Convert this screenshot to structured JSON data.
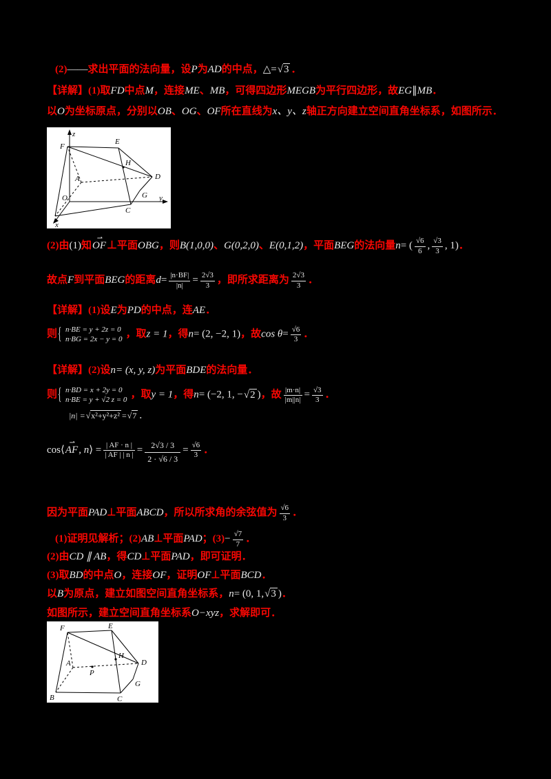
{
  "colors": {
    "background": "#000000",
    "red_text": "#f80703",
    "white_text": "#e9e9e9",
    "diagram_bg": "#ffffff"
  },
  "document": {
    "lines": [
      {
        "segments": [
          {
            "t": "(2)",
            "c": "r"
          },
          {
            "t": "——",
            "c": "w"
          },
          {
            "t": "求出平面的法向量，设",
            "c": "r"
          },
          {
            "t": "P",
            "c": "w",
            "i": true
          },
          {
            "t": "为",
            "c": "r"
          },
          {
            "t": "AD",
            "c": "w",
            "i": true
          },
          {
            "t": "的中点，",
            "c": "r"
          },
          {
            "t": "△",
            "c": "w"
          },
          {
            "t": "=",
            "c": "w"
          },
          {
            "k": "sqrt",
            "t": "3",
            "c": "w"
          },
          {
            "t": "．",
            "c": "r"
          }
        ]
      },
      {
        "segments": [
          {
            "t": "【详解】",
            "c": "r"
          },
          {
            "t": "(1)",
            "c": "r"
          },
          {
            "t": "取",
            "c": "r"
          },
          {
            "t": "FD",
            "c": "w",
            "i": true
          },
          {
            "t": "中点",
            "c": "r"
          },
          {
            "t": "M",
            "c": "w",
            "i": true
          },
          {
            "t": "，连接",
            "c": "r"
          },
          {
            "t": "ME",
            "c": "w",
            "i": true
          },
          {
            "t": "、",
            "c": "r"
          },
          {
            "t": "MB",
            "c": "w",
            "i": true
          },
          {
            "t": "，可得四边形",
            "c": "r"
          },
          {
            "t": "MEGB",
            "c": "w",
            "i": true
          },
          {
            "t": "为平行四边形，故",
            "c": "r"
          },
          {
            "t": "EG",
            "c": "w",
            "i": true
          },
          {
            "t": "∥",
            "c": "w"
          },
          {
            "t": "MB",
            "c": "w",
            "i": true
          },
          {
            "t": "．",
            "c": "r"
          }
        ]
      },
      {
        "segments": [
          {
            "t": "以",
            "c": "r"
          },
          {
            "t": "O",
            "c": "w",
            "i": true
          },
          {
            "t": "为坐标原点，分别以",
            "c": "r"
          },
          {
            "t": "OB",
            "c": "w",
            "i": true
          },
          {
            "t": "、",
            "c": "r"
          },
          {
            "t": "OG",
            "c": "w",
            "i": true
          },
          {
            "t": "、",
            "c": "r"
          },
          {
            "t": "OF",
            "c": "w",
            "i": true
          },
          {
            "t": "所在直线为",
            "c": "r"
          },
          {
            "t": "x、y、z",
            "c": "w",
            "i": true
          },
          {
            "t": "轴正方向建立空间直角坐标系，如图所示．",
            "c": "r"
          }
        ]
      },
      {
        "segments": [
          {
            "t": "(2)",
            "c": "r"
          },
          {
            "t": "由",
            "c": "r"
          },
          {
            "t": "(1)",
            "c": "w"
          },
          {
            "t": "知",
            "c": "r"
          },
          {
            "k": "vec",
            "t": "OF",
            "c": "w"
          },
          {
            "t": "⊥平面",
            "c": "r"
          },
          {
            "t": "OBG",
            "c": "w",
            "i": true
          },
          {
            "t": "，则",
            "c": "r"
          },
          {
            "t": "B(1,0,0)",
            "c": "w",
            "i": true
          },
          {
            "t": "、",
            "c": "r"
          },
          {
            "t": "G(0,2,0)",
            "c": "w",
            "i": true
          },
          {
            "t": "、",
            "c": "r"
          },
          {
            "t": "E(0,1,2)",
            "c": "w",
            "i": true
          },
          {
            "t": "，平面",
            "c": "r"
          },
          {
            "t": "BEG",
            "c": "w",
            "i": true
          },
          {
            "t": "的法向量",
            "c": "r"
          },
          {
            "t": "n",
            "c": "w",
            "i": true
          },
          {
            "t": "= (",
            "c": "w"
          },
          {
            "k": "frac",
            "n": "√6",
            "d": "6",
            "c": "w"
          },
          {
            "t": ",",
            "c": "w"
          },
          {
            "k": "frac",
            "n": "√3",
            "d": "3",
            "c": "w"
          },
          {
            "t": ", 1)",
            "c": "w"
          },
          {
            "t": "．",
            "c": "r"
          }
        ]
      },
      {
        "segments": [
          {
            "t": "故点",
            "c": "r"
          },
          {
            "t": "F",
            "c": "w",
            "i": true
          },
          {
            "t": "到平面",
            "c": "r"
          },
          {
            "t": "BEG",
            "c": "w",
            "i": true
          },
          {
            "t": "的距离",
            "c": "r"
          },
          {
            "t": "d",
            "c": "w",
            "i": true
          },
          {
            "t": "=",
            "c": "w"
          },
          {
            "k": "frac",
            "n": "|n·BF|",
            "d": "|n|",
            "c": "w"
          },
          {
            "t": "=",
            "c": "w"
          },
          {
            "k": "frac",
            "n": "2√3",
            "d": "3",
            "c": "w"
          },
          {
            "t": "，即所求距离为",
            "c": "r"
          },
          {
            "k": "frac",
            "n": "2√3",
            "d": "3",
            "c": "w"
          },
          {
            "t": "．",
            "c": "r"
          }
        ]
      },
      {
        "segments": [
          {
            "t": "【详解】",
            "c": "r"
          },
          {
            "t": "(1)",
            "c": "r"
          },
          {
            "t": "设",
            "c": "r"
          },
          {
            "t": "E",
            "c": "w",
            "i": true
          },
          {
            "t": "为",
            "c": "r"
          },
          {
            "t": "PD",
            "c": "w",
            "i": true
          },
          {
            "t": "的中点，连",
            "c": "r"
          },
          {
            "t": "AE",
            "c": "w",
            "i": true
          },
          {
            "t": "．",
            "c": "r"
          }
        ]
      },
      {
        "segments": [
          {
            "t": "则",
            "c": "r"
          },
          {
            "k": "sys",
            "rows": [
              "n·BE = y + 2z = 0",
              "n·BG = 2x − y = 0"
            ],
            "c": "w"
          },
          {
            "t": "，取",
            "c": "r"
          },
          {
            "t": "z = 1",
            "c": "w",
            "i": true
          },
          {
            "t": "，得",
            "c": "r"
          },
          {
            "t": "n",
            "c": "w",
            "i": true
          },
          {
            "t": "= (2, −2, 1)",
            "c": "w"
          },
          {
            "t": "，故",
            "c": "r"
          },
          {
            "t": "cos θ",
            "c": "w",
            "i": true
          },
          {
            "t": "=",
            "c": "w"
          },
          {
            "k": "frac",
            "n": "√6",
            "d": "3",
            "c": "w"
          },
          {
            "t": "．",
            "c": "r"
          }
        ]
      },
      {
        "segments": [
          {
            "t": "【详解】",
            "c": "r"
          },
          {
            "t": "(2)",
            "c": "r"
          },
          {
            "t": "设",
            "c": "r"
          },
          {
            "t": "n",
            "c": "w",
            "i": true
          },
          {
            "t": "= (x, y, z)",
            "c": "w",
            "i": true
          },
          {
            "t": "为平面",
            "c": "r"
          },
          {
            "t": "BDE",
            "c": "w",
            "i": true
          },
          {
            "t": "的法向量．",
            "c": "r"
          }
        ]
      },
      {
        "segments": [
          {
            "t": "则",
            "c": "r"
          },
          {
            "k": "sys",
            "rows": [
              "n·BD = x + 2y = 0",
              "n·BE = y + √2 z = 0"
            ],
            "c": "w"
          },
          {
            "t": "，取",
            "c": "r"
          },
          {
            "t": "y = 1",
            "c": "w",
            "i": true
          },
          {
            "t": "，得",
            "c": "r"
          },
          {
            "t": "n",
            "c": "w",
            "i": true
          },
          {
            "t": "= (−2, 1, −",
            "c": "w"
          },
          {
            "k": "sqrt",
            "t": "2",
            "c": "w"
          },
          {
            "t": ")",
            "c": "w"
          },
          {
            "t": "，故",
            "c": "r"
          },
          {
            "k": "frac",
            "n": "|m·n|",
            "d": "|m||n|",
            "c": "w"
          },
          {
            "t": "=",
            "c": "w"
          },
          {
            "k": "frac",
            "n": "√3",
            "d": "3",
            "c": "w"
          },
          {
            "t": "．",
            "c": "r"
          }
        ]
      },
      {
        "segments": [
          {
            "t": "|n| =",
            "c": "w",
            "i": true
          },
          {
            "k": "sqrt",
            "t": "x²+y²+z²",
            "c": "w"
          },
          {
            "t": "=",
            "c": "w"
          },
          {
            "k": "sqrt",
            "t": "7",
            "c": "w"
          },
          {
            "t": "．",
            "c": "w"
          }
        ]
      },
      {
        "segments": [
          {
            "t": "cos⟨",
            "c": "w"
          },
          {
            "k": "vec",
            "t": "AF",
            "c": "w"
          },
          {
            "t": ", ",
            "c": "w"
          },
          {
            "t": "n",
            "c": "w",
            "i": true
          },
          {
            "t": "⟩ =",
            "c": "w"
          },
          {
            "k": "frac",
            "n": "| AF · n |",
            "d": "| AF | | n |",
            "c": "w"
          },
          {
            "t": "=",
            "c": "w"
          },
          {
            "k": "frac",
            "n": "2√3 / 3",
            "d": "2 · √6 / 3",
            "c": "w",
            "big": true
          },
          {
            "t": "=",
            "c": "w"
          },
          {
            "k": "frac",
            "n": "√6",
            "d": "3",
            "c": "w"
          },
          {
            "t": "．",
            "c": "r"
          }
        ]
      },
      {
        "segments": [
          {
            "t": "因为平面",
            "c": "r"
          },
          {
            "t": "PAD",
            "c": "w",
            "i": true
          },
          {
            "t": "⊥平面",
            "c": "r"
          },
          {
            "t": "ABCD",
            "c": "w",
            "i": true
          },
          {
            "t": "，所以所求角的余弦值为",
            "c": "r"
          },
          {
            "k": "frac",
            "n": "√6",
            "d": "3",
            "c": "w"
          },
          {
            "t": "．",
            "c": "r"
          }
        ]
      },
      {
        "segments": [
          {
            "t": "(1)",
            "c": "r"
          },
          {
            "t": "证明见解析；",
            "c": "r"
          },
          {
            "t": "(2)",
            "c": "r"
          },
          {
            "t": "AB",
            "c": "w",
            "i": true
          },
          {
            "t": "⊥平面",
            "c": "r"
          },
          {
            "t": "PAD",
            "c": "w",
            "i": true
          },
          {
            "t": "；",
            "c": "r"
          },
          {
            "t": "(3)",
            "c": "r"
          },
          {
            "t": "−",
            "c": "w"
          },
          {
            "k": "frac",
            "n": "√7",
            "d": "7",
            "c": "w"
          },
          {
            "t": "．",
            "c": "r"
          }
        ]
      },
      {
        "segments": [
          {
            "t": "(2)",
            "c": "r"
          },
          {
            "t": "由",
            "c": "r"
          },
          {
            "t": "CD ∥ AB",
            "c": "w",
            "i": true
          },
          {
            "t": "，得",
            "c": "r"
          },
          {
            "t": "CD",
            "c": "w",
            "i": true
          },
          {
            "t": "⊥平面",
            "c": "r"
          },
          {
            "t": "PAD",
            "c": "w",
            "i": true
          },
          {
            "t": "，即可证明",
            "c": "r"
          },
          {
            "t": "．",
            "c": "r"
          }
        ]
      },
      {
        "segments": [
          {
            "t": "(3)",
            "c": "r"
          },
          {
            "t": "取",
            "c": "r"
          },
          {
            "t": "BD",
            "c": "w",
            "i": true
          },
          {
            "t": "的中点",
            "c": "r"
          },
          {
            "t": "O",
            "c": "w",
            "i": true
          },
          {
            "t": "，连接",
            "c": "r"
          },
          {
            "t": "OF",
            "c": "w",
            "i": true
          },
          {
            "t": "，证明",
            "c": "r"
          },
          {
            "t": "OF",
            "c": "w",
            "i": true
          },
          {
            "t": "⊥平面",
            "c": "r"
          },
          {
            "t": "BCD",
            "c": "w",
            "i": true
          },
          {
            "t": "．",
            "c": "r"
          }
        ]
      },
      {
        "segments": [
          {
            "t": "以",
            "c": "r"
          },
          {
            "t": "B",
            "c": "w",
            "i": true
          },
          {
            "t": "为原点，建立如图空间直角坐标系，",
            "c": "r"
          },
          {
            "t": "n",
            "c": "w",
            "i": true
          },
          {
            "t": "= (0, 1,",
            "c": "w"
          },
          {
            "k": "sqrt",
            "t": "3",
            "c": "w"
          },
          {
            "t": ")",
            "c": "w"
          },
          {
            "t": "．",
            "c": "r"
          }
        ]
      },
      {
        "segments": [
          {
            "t": "如图所示，建立空间直角坐标系",
            "c": "r"
          },
          {
            "t": "O−xyz",
            "c": "w",
            "i": true
          },
          {
            "t": "，求解即可．",
            "c": "r"
          }
        ]
      }
    ]
  },
  "diagram1": {
    "axis_labels": {
      "x": "x",
      "y": "y",
      "z": "z"
    },
    "points": {
      "F": "F",
      "E": "E",
      "H": "H",
      "A": "A",
      "D": "D",
      "O": "O",
      "G": "G",
      "C": "C"
    }
  },
  "diagram2": {
    "points": {
      "F": "F",
      "E": "E",
      "H": "H",
      "A": "A",
      "P": "P",
      "D": "D",
      "G": "G",
      "B": "B",
      "C": "C"
    }
  }
}
